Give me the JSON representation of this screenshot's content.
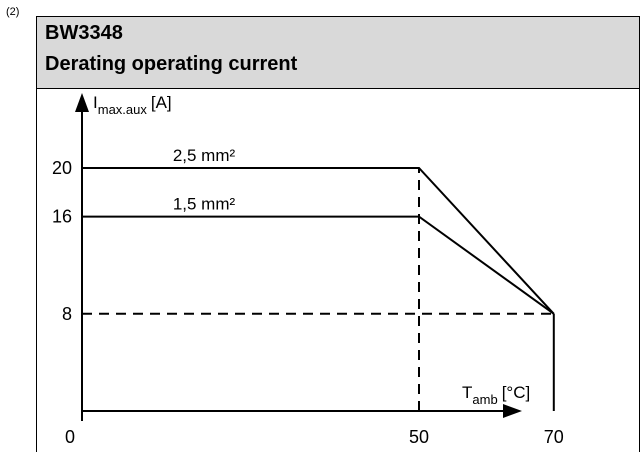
{
  "footnote": "(2)",
  "header": {
    "code": "BW3348",
    "title": "Derating operating current"
  },
  "chart_data": {
    "type": "line",
    "ylabel": {
      "main": "I",
      "sub": "max.aux",
      "unit": "[A]"
    },
    "xlabel": {
      "main": "T",
      "sub": "amb",
      "unit": "[°C]"
    },
    "x_ticks": [
      "0",
      "50",
      "70"
    ],
    "y_ticks": [
      "20",
      "16",
      "8"
    ],
    "xlim": [
      0,
      90
    ],
    "ylim": [
      0,
      24
    ],
    "series": [
      {
        "name": "2,5 mm²",
        "points": [
          [
            0,
            20
          ],
          [
            50,
            20
          ],
          [
            70,
            8
          ]
        ]
      },
      {
        "name": "1,5 mm²",
        "points": [
          [
            0,
            16
          ],
          [
            50,
            16
          ],
          [
            70,
            8
          ]
        ]
      }
    ],
    "reference_lines": [
      {
        "style": "dashed",
        "points": [
          [
            0,
            8
          ],
          [
            70,
            8
          ]
        ]
      },
      {
        "style": "dashed",
        "points": [
          [
            50,
            0
          ],
          [
            50,
            20
          ]
        ]
      },
      {
        "style": "solid",
        "points": [
          [
            70,
            0
          ],
          [
            70,
            8
          ]
        ]
      }
    ],
    "grid": false,
    "colors": {
      "line": "#000000",
      "header_bg": "#d9d9d9"
    }
  }
}
